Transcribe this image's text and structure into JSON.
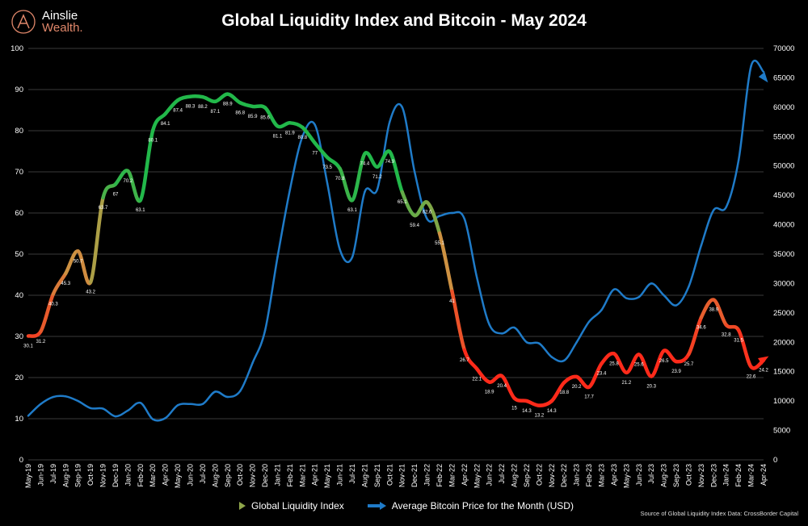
{
  "logo": {
    "line1": "Ainslie",
    "line2": "Wealth."
  },
  "title": "Global Liquidity Index and Bitcoin - May 2024",
  "source": "Source of Global Liquidity Index Data: CrossBorder Capital",
  "colors": {
    "background": "#000000",
    "bitcoin": "#1f7bc8",
    "liquidity_low": "#ff2a1a",
    "liquidity_mid": "#c99a45",
    "liquidity_high": "#22b84a"
  },
  "chart_data": {
    "type": "line",
    "title": "Global Liquidity Index and Bitcoin - May 2024",
    "grid": true,
    "legend_position": "bottom",
    "left_axis": {
      "range": [
        0,
        100
      ],
      "ticks": [
        0,
        10,
        20,
        30,
        40,
        50,
        60,
        70,
        80,
        90,
        100
      ]
    },
    "right_axis": {
      "range": [
        0,
        70000
      ],
      "ticks": [
        0,
        5000,
        10000,
        15000,
        20000,
        25000,
        30000,
        35000,
        40000,
        45000,
        50000,
        55000,
        60000,
        65000,
        70000
      ]
    },
    "categories": [
      "May-19",
      "Jun-19",
      "Jul-19",
      "Aug-19",
      "Sep-19",
      "Oct-19",
      "Nov-19",
      "Dec-19",
      "Jan-20",
      "Feb-20",
      "Mar-20",
      "Apr-20",
      "May-20",
      "Jun-20",
      "Jul-20",
      "Aug-20",
      "Sep-20",
      "Oct-20",
      "Nov-20",
      "Dec-20",
      "Jan-21",
      "Feb-21",
      "Mar-21",
      "Apr-21",
      "May-21",
      "Jun-21",
      "Jul-21",
      "Aug-21",
      "Sep-21",
      "Oct-21",
      "Nov-21",
      "Dec-21",
      "Jan-22",
      "Feb-22",
      "Mar-22",
      "Apr-22",
      "May-22",
      "Jun-22",
      "Jul-22",
      "Aug-22",
      "Sep-22",
      "Oct-22",
      "Nov-22",
      "Dec-22",
      "Jan-23",
      "Feb-23",
      "Mar-23",
      "Apr-23",
      "May-23",
      "Jun-23",
      "Jul-23",
      "Aug-23",
      "Sep-23",
      "Oct-23",
      "Nov-23",
      "Dec-23",
      "Jan-24",
      "Feb-24",
      "Mar-24",
      "Apr-24"
    ],
    "series": [
      {
        "name": "Global Liquidity Index",
        "axis": "left",
        "values": [
          30.1,
          31.2,
          40.3,
          45.3,
          50.7,
          43.2,
          63.7,
          67,
          70.2,
          63.1,
          80.1,
          84.1,
          87.4,
          88.3,
          88.2,
          87.1,
          88.9,
          86.8,
          85.9,
          85.6,
          81.1,
          81.9,
          80.8,
          77,
          73.5,
          70.8,
          63.1,
          74.4,
          71.2,
          74.9,
          65.1,
          59.4,
          62.6,
          55.1,
          41,
          26.7,
          22.1,
          18.9,
          20.4,
          15,
          14.3,
          13.2,
          14.3,
          18.8,
          20.2,
          17.7,
          23.4,
          25.8,
          21.2,
          25.6,
          20.3,
          26.5,
          23.9,
          25.7,
          34.6,
          38.9,
          32.8,
          31.5,
          22.6,
          24.2
        ]
      },
      {
        "name": "Average Bitcoin Price for the Month (USD)",
        "axis": "right",
        "values": [
          7500,
          9500,
          10700,
          10800,
          10000,
          8800,
          8700,
          7400,
          8400,
          9700,
          6900,
          7100,
          9300,
          9500,
          9500,
          11600,
          10700,
          11700,
          16500,
          22000,
          34500,
          46000,
          55000,
          57000,
          47000,
          35800,
          34500,
          45600,
          46000,
          57500,
          60000,
          49000,
          41000,
          41500,
          42000,
          41000,
          31000,
          23000,
          21500,
          22500,
          20000,
          19800,
          17500,
          16900,
          20000,
          23500,
          25500,
          29000,
          27500,
          27700,
          30000,
          28000,
          26300,
          29500,
          36500,
          42500,
          43000,
          51000,
          67000,
          66000
        ]
      }
    ]
  }
}
